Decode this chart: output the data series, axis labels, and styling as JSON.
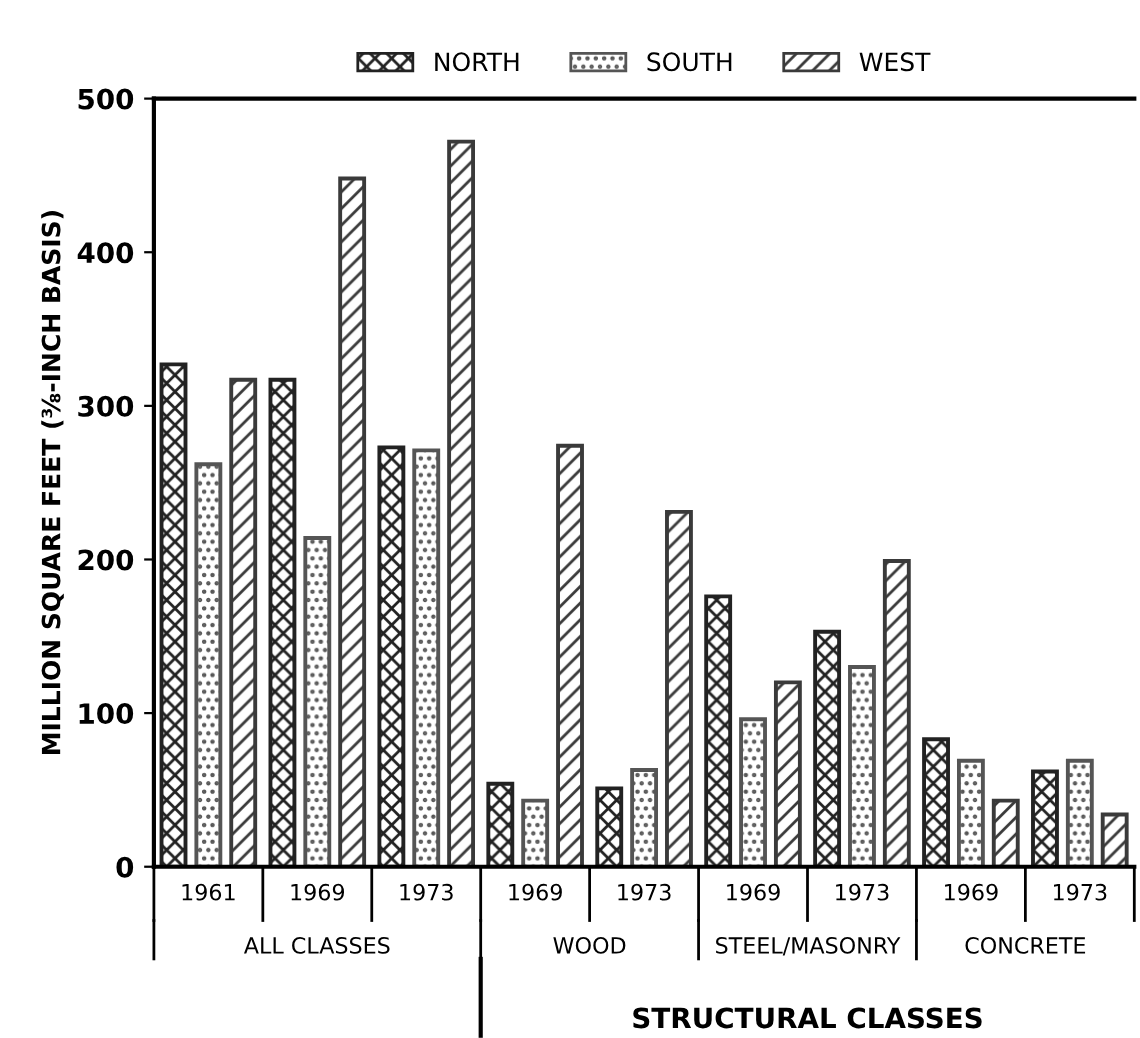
{
  "chart_data": {
    "type": "bar",
    "categories": [
      "1961",
      "1969",
      "1973",
      "1969",
      "1973",
      "1969",
      "1973",
      "1969",
      "1973"
    ],
    "ylabel": "MILLION SQUARE FEET (⅜-INCH BASIS)",
    "series": [
      {
        "name": "NORTH",
        "color": "#222222",
        "values": [
          327,
          317,
          273,
          54,
          51,
          176,
          153,
          83,
          62
        ]
      },
      {
        "name": "SOUTH",
        "color": "#555555",
        "values": [
          262,
          214,
          271,
          43,
          63,
          96,
          130,
          69,
          69
        ]
      },
      {
        "name": "WEST",
        "color": "#3a3a3a",
        "values": [
          317,
          448,
          472,
          274,
          231,
          120,
          199,
          43,
          34
        ]
      }
    ],
    "ylim": [
      0,
      500
    ],
    "yticks": [
      0,
      100,
      200,
      300,
      400,
      500
    ],
    "grid": false,
    "legend": "top",
    "annotations": [
      "ALL CLASSES",
      "WOOD",
      "STEEL/MASONRY",
      "CONCRETE",
      "STRUCTURAL CLASSES"
    ]
  }
}
